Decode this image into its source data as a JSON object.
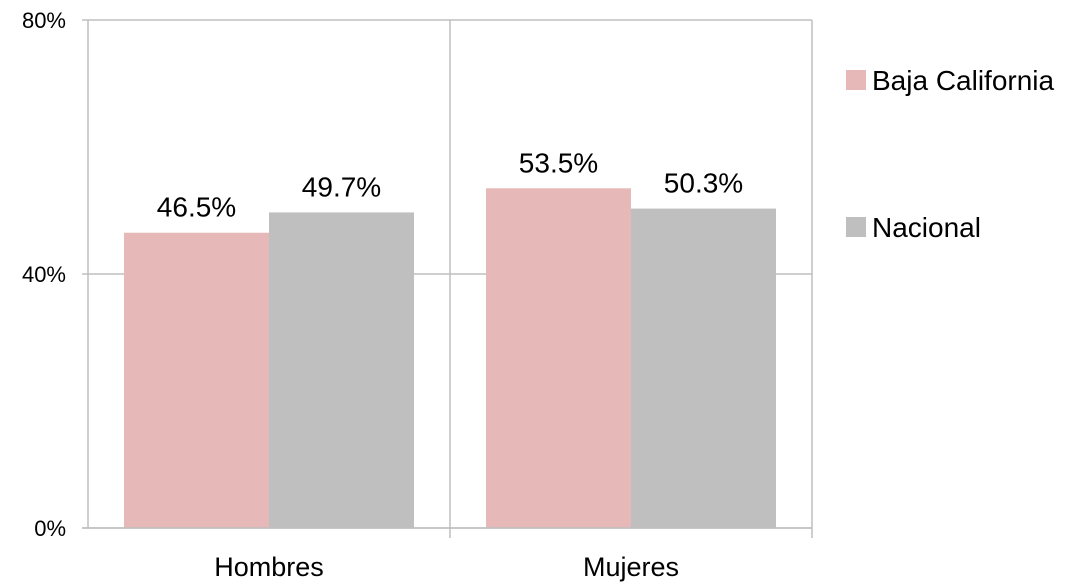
{
  "chart_data": {
    "type": "bar",
    "categories": [
      "Hombres",
      "Mujeres"
    ],
    "series": [
      {
        "name": "Baja California",
        "values": [
          46.5,
          53.5
        ],
        "labels": [
          "46.5%",
          "53.5%"
        ],
        "color": "#e6b8b8"
      },
      {
        "name": "Nacional",
        "values": [
          49.7,
          50.3
        ],
        "labels": [
          "49.7%",
          "50.3%"
        ],
        "color": "#bfbfbf"
      }
    ],
    "ylim": [
      0,
      80
    ],
    "yticks": [
      0,
      40,
      80
    ],
    "ytick_labels": [
      "0%",
      "40%",
      "80%"
    ],
    "grid": true,
    "legend_position": "right",
    "grid_color": "#bfbfbf"
  }
}
